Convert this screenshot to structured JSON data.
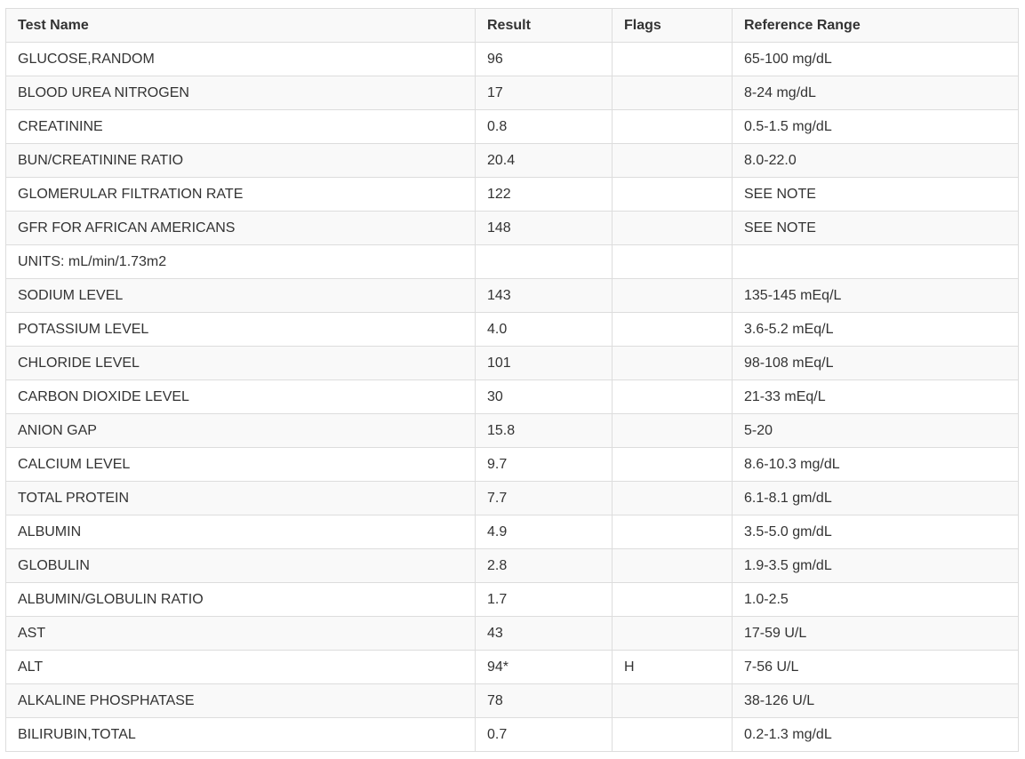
{
  "table": {
    "headers": [
      "Test Name",
      "Result",
      "Flags",
      "Reference Range"
    ],
    "rows": [
      [
        "GLUCOSE,RANDOM",
        "96",
        "",
        "65-100 mg/dL"
      ],
      [
        "BLOOD UREA NITROGEN",
        "17",
        "",
        "8-24 mg/dL"
      ],
      [
        "CREATININE",
        "0.8",
        "",
        "0.5-1.5 mg/dL"
      ],
      [
        "BUN/CREATININE RATIO",
        "20.4",
        "",
        "8.0-22.0"
      ],
      [
        "GLOMERULAR FILTRATION RATE",
        "122",
        "",
        "SEE NOTE"
      ],
      [
        "GFR FOR AFRICAN AMERICANS",
        "148",
        "",
        "SEE NOTE"
      ],
      [
        "UNITS: mL/min/1.73m2",
        "",
        "",
        ""
      ],
      [
        "SODIUM LEVEL",
        "143",
        "",
        "135-145 mEq/L"
      ],
      [
        "POTASSIUM LEVEL",
        "4.0",
        "",
        "3.6-5.2 mEq/L"
      ],
      [
        "CHLORIDE LEVEL",
        "101",
        "",
        "98-108 mEq/L"
      ],
      [
        "CARBON DIOXIDE LEVEL",
        "30",
        "",
        "21-33 mEq/L"
      ],
      [
        "ANION GAP",
        "15.8",
        "",
        "5-20"
      ],
      [
        "CALCIUM LEVEL",
        "9.7",
        "",
        "8.6-10.3 mg/dL"
      ],
      [
        "TOTAL PROTEIN",
        "7.7",
        "",
        "6.1-8.1 gm/dL"
      ],
      [
        "ALBUMIN",
        "4.9",
        "",
        "3.5-5.0 gm/dL"
      ],
      [
        "GLOBULIN",
        "2.8",
        "",
        "1.9-3.5 gm/dL"
      ],
      [
        "ALBUMIN/GLOBULIN RATIO",
        "1.7",
        "",
        "1.0-2.5"
      ],
      [
        "AST",
        "43",
        "",
        "17-59 U/L"
      ],
      [
        "ALT",
        "94*",
        "H",
        "7-56 U/L"
      ],
      [
        "ALKALINE PHOSPHATASE",
        "78",
        "",
        "38-126 U/L"
      ],
      [
        "BILIRUBIN,TOTAL",
        "0.7",
        "",
        "0.2-1.3 mg/dL"
      ]
    ]
  }
}
